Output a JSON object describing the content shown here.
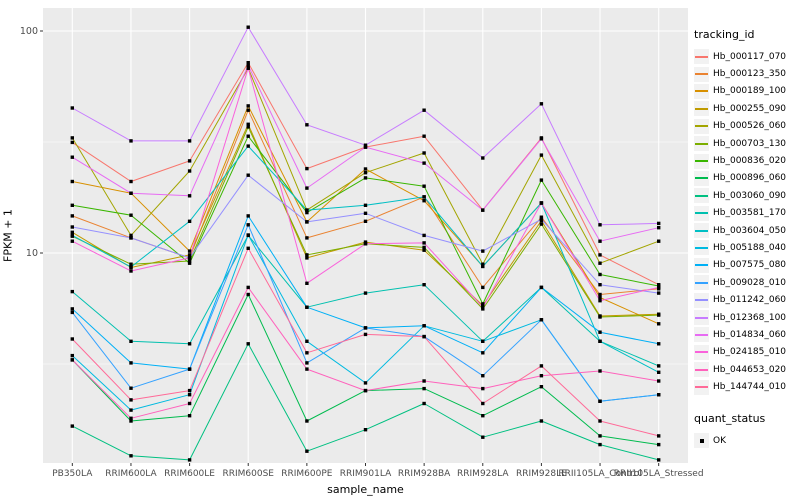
{
  "chart_data": {
    "type": "line",
    "title": "",
    "xlabel": "sample_name",
    "ylabel": "FPKM + 1",
    "y_scale": "log10",
    "y_ticks": [
      100,
      10
    ],
    "y_minor_ticks": [
      31.62,
      3.162
    ],
    "ylim": [
      1.13,
      127
    ],
    "grid": true,
    "panel_bg": "#EBEBEB",
    "grid_color": "#FFFFFF",
    "tick_label_color": "#4D4D4D",
    "point_color": "#000000",
    "point_shape": "square",
    "categories": [
      "PB350LA",
      "RRIM600LA",
      "RRIM600LE",
      "RRIM600SE",
      "RRIM600PE",
      "RRIM901LA",
      "RRIM928BA",
      "RRIM928LA",
      "RRIM928LE",
      "RRII105LA_Control",
      "RRII105LA_Stressed"
    ],
    "series": [
      {
        "name": "Hb_000117_070",
        "color": "#F8766D",
        "values": [
          31.5,
          21,
          26,
          72,
          24,
          30,
          33.6,
          15.6,
          33,
          9.8,
          7.2
        ]
      },
      {
        "name": "Hb_000123_350",
        "color": "#EA8331",
        "values": [
          14.7,
          11.7,
          9.5,
          44,
          11.7,
          13.9,
          17.9,
          7.0,
          14.5,
          6.5,
          6.9
        ]
      },
      {
        "name": "Hb_000189_100",
        "color": "#D89000",
        "values": [
          21,
          18.6,
          10.2,
          46,
          13.8,
          23.9,
          17.2,
          8.7,
          16.8,
          6.3,
          4.8
        ]
      },
      {
        "name": "Hb_000255_090",
        "color": "#C09B00",
        "values": [
          12.4,
          8.6,
          9.8,
          38,
          9.5,
          11.2,
          10.3,
          5.8,
          14.0,
          5.2,
          5.3
        ]
      },
      {
        "name": "Hb_000526_060",
        "color": "#A3A500",
        "values": [
          33,
          12.0,
          23.4,
          68,
          15.6,
          23,
          28.2,
          8.9,
          27.6,
          9.0,
          11.3
        ]
      },
      {
        "name": "Hb_000703_130",
        "color": "#7CAE00",
        "values": [
          11.9,
          8.9,
          9.2,
          37,
          9.8,
          11.0,
          10.6,
          5.6,
          13.5,
          5.15,
          5.25
        ]
      },
      {
        "name": "Hb_000836_020",
        "color": "#39B600",
        "values": [
          16.4,
          14.8,
          9.0,
          33.6,
          15.2,
          21.8,
          20.0,
          5.9,
          21.3,
          8.0,
          7.1
        ]
      },
      {
        "name": "Hb_000896_060",
        "color": "#00BB4E",
        "values": [
          3.3,
          1.75,
          1.85,
          6.5,
          1.75,
          2.4,
          2.45,
          1.85,
          2.5,
          1.5,
          1.37
        ]
      },
      {
        "name": "Hb_003060_090",
        "color": "#00C081",
        "values": [
          1.66,
          1.22,
          1.17,
          3.9,
          1.28,
          1.6,
          2.1,
          1.48,
          1.75,
          1.37,
          1.17
        ]
      },
      {
        "name": "Hb_003581_170",
        "color": "#00C0AF",
        "values": [
          6.7,
          4.0,
          3.9,
          12.0,
          5.7,
          6.6,
          7.2,
          4.0,
          7.0,
          4.0,
          3.1
        ]
      },
      {
        "name": "Hb_003604_050",
        "color": "#00BFC4",
        "values": [
          12.0,
          8.65,
          13.9,
          30.3,
          15.6,
          16.4,
          17.9,
          8.7,
          16.8,
          4.0,
          2.9
        ]
      },
      {
        "name": "Hb_005188_040",
        "color": "#00BAE0",
        "values": [
          3.45,
          1.96,
          2.3,
          12.05,
          4.0,
          2.6,
          4.7,
          4.0,
          5.0,
          2.15,
          2.3
        ]
      },
      {
        "name": "Hb_007575_080",
        "color": "#00B0F6",
        "values": [
          5.6,
          3.2,
          3.0,
          14.7,
          5.7,
          4.6,
          4.7,
          3.55,
          7.0,
          4.4,
          3.9
        ]
      },
      {
        "name": "Hb_009028_010",
        "color": "#35A2FF",
        "values": [
          5.4,
          2.46,
          3.0,
          13.4,
          3.2,
          4.6,
          4.2,
          2.8,
          5.0,
          2.15,
          2.3
        ]
      },
      {
        "name": "Hb_011242_060",
        "color": "#9590FF",
        "values": [
          13.1,
          11.7,
          9.5,
          22.4,
          13.8,
          15.1,
          12.0,
          10.2,
          14.2,
          7.2,
          6.6
        ]
      },
      {
        "name": "Hb_012368_100",
        "color": "#C77CFF",
        "values": [
          45,
          32,
          32,
          104,
          37.8,
          30.6,
          44,
          26.8,
          47,
          13.4,
          13.6
        ]
      },
      {
        "name": "Hb_014834_060",
        "color": "#E76BF3",
        "values": [
          27,
          18.6,
          18.1,
          70,
          19.6,
          30,
          25.4,
          15.6,
          32.7,
          11.3,
          13.0
        ]
      },
      {
        "name": "Hb_024185_010",
        "color": "#FA62DB",
        "values": [
          11.3,
          8.3,
          9.5,
          68,
          7.3,
          11.0,
          11.1,
          5.7,
          16.8,
          6.1,
          7.0
        ]
      },
      {
        "name": "Hb_044653_020",
        "color": "#FF62BC",
        "values": [
          3.3,
          1.8,
          2.1,
          7.0,
          3.0,
          2.4,
          2.65,
          2.45,
          2.8,
          2.94,
          2.65
        ]
      },
      {
        "name": "Hb_144744_010",
        "color": "#FF6A98",
        "values": [
          4.1,
          2.18,
          2.4,
          10.5,
          3.55,
          4.3,
          4.2,
          2.1,
          3.1,
          1.75,
          1.5
        ]
      }
    ],
    "legend": {
      "position": "right",
      "tracking_title": "tracking_id",
      "quant_title": "quant_status",
      "quant_items": [
        {
          "label": "OK"
        }
      ]
    }
  }
}
